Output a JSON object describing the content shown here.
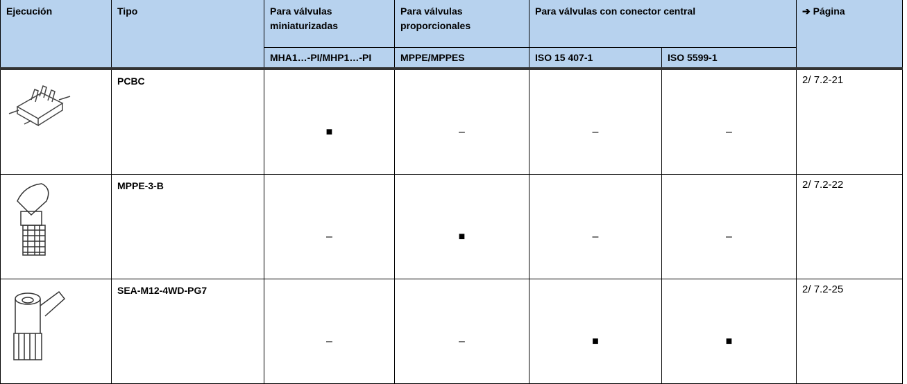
{
  "header": {
    "columns": [
      "Ejecución",
      "Tipo",
      "Para válvulas miniaturizadas",
      "Para válvulas proporcionales",
      "Para válvulas con conector central",
      "➔ Página"
    ],
    "subcolumns": [
      "MHA1…-PI/MHP1…-PI",
      "MPPE/MPPES",
      "ISO 15 407-1",
      "ISO 5599-1"
    ]
  },
  "rows": [
    {
      "tipo": "PCBC",
      "cells": [
        "■",
        "–",
        "–",
        "–"
      ],
      "page": "2/ 7.2-21"
    },
    {
      "tipo": "MPPE-3-B",
      "cells": [
        "–",
        "■",
        "–",
        "–"
      ],
      "page": "2/ 7.2-22"
    },
    {
      "tipo": "SEA-M12-4WD-PG7",
      "cells": [
        "–",
        "–",
        "■",
        "■"
      ],
      "page": "2/ 7.2-25"
    }
  ]
}
